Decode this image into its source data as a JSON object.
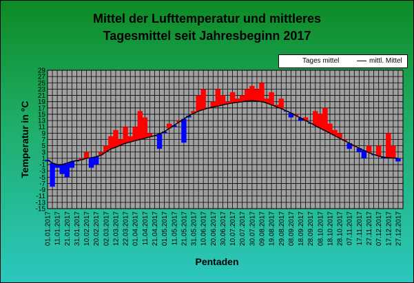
{
  "chart_data": {
    "type": "bar",
    "title_lines": [
      "Mittel der Lufttemperatur und mittleres",
      "Tagesmittel seit Jahresbeginn 2017"
    ],
    "xlabel": "Pentaden",
    "ylabel": "Temperatur in °C",
    "ylim": [
      -15,
      29
    ],
    "yticks": [
      29,
      27,
      25,
      23,
      21,
      19,
      17,
      15,
      13,
      11,
      9,
      7,
      5,
      3,
      1,
      -1,
      -3,
      -5,
      -7,
      -9,
      -11,
      -13,
      -15
    ],
    "xticks": [
      "01.01.2017",
      "11.01.2017",
      "21.01.2017",
      "31.01.2017",
      "10.02.2017",
      "20.02.2017",
      "02.03.2017",
      "12.03.2017",
      "22.03.2017",
      "01.04.2017",
      "11.04.2017",
      "21.04.2017",
      "01.05.2017",
      "11.05.2017",
      "21.05.2017",
      "31.05.2017",
      "10.06.2017",
      "20.06.2017",
      "30.06.2017",
      "10.07.2017",
      "20.07.2017",
      "30.07.2017",
      "09.08.2017",
      "19.08.2017",
      "29.08.2017",
      "08.09.2017",
      "18.09.2017",
      "28.09.2017",
      "08.10.2017",
      "18.10.2017",
      "28.10.2017",
      "07.11.2017",
      "17.11.2017",
      "27.11.2017",
      "07.12.2017",
      "17.12.2017",
      "27.12.2017"
    ],
    "grid": true,
    "legend_position": "top-right",
    "series": [
      {
        "name": "Tages mittel",
        "style": "bars above mean red, below mean blue"
      },
      {
        "name": "mittl. Mittel",
        "style": "line"
      }
    ],
    "x_days": [
      1,
      6,
      11,
      16,
      21,
      26,
      31,
      36,
      41,
      46,
      51,
      56,
      61,
      66,
      71,
      76,
      81,
      86,
      91,
      96,
      101,
      106,
      111,
      116,
      121,
      126,
      131,
      136,
      141,
      146,
      151,
      156,
      161,
      166,
      171,
      176,
      181,
      186,
      191,
      196,
      201,
      206,
      211,
      216,
      221,
      226,
      231,
      236,
      241,
      246,
      251,
      256,
      261,
      266,
      271,
      276,
      281,
      286,
      291,
      296,
      301,
      306,
      311,
      316,
      321,
      326,
      331,
      336,
      341,
      346,
      351,
      356,
      361
    ],
    "daily_mean": [
      0,
      -8,
      -2,
      -4,
      -5,
      -2,
      0,
      1,
      3,
      -2,
      -1,
      3,
      5,
      8,
      10,
      7,
      11,
      8,
      11,
      16,
      14,
      9,
      8,
      4,
      9,
      12,
      11,
      13,
      6,
      14,
      16,
      21,
      23,
      17,
      19,
      23,
      21,
      19,
      22,
      20,
      21,
      23,
      24,
      23,
      25,
      20,
      22,
      18,
      20,
      16,
      14,
      15,
      13,
      14,
      12,
      16,
      15,
      17,
      12,
      10,
      9,
      7,
      4,
      5,
      3,
      1,
      5,
      2,
      5,
      1,
      9,
      5,
      0
    ],
    "running_mean": [
      0.5,
      -0.5,
      -1,
      -1,
      -0.5,
      0,
      0.3,
      0.5,
      1,
      1.2,
      1.5,
      2,
      3,
      4,
      4.5,
      5.2,
      5.8,
      6.2,
      6.6,
      7,
      7.4,
      7.8,
      8.2,
      8.8,
      9.5,
      10.5,
      11.5,
      12.5,
      13.5,
      14.5,
      15.3,
      16,
      16.5,
      17,
      17.3,
      17.6,
      18,
      18.3,
      18.6,
      18.8,
      19,
      19.2,
      19.3,
      19.2,
      19,
      18.6,
      18,
      17.4,
      16.8,
      16.1,
      15.4,
      14.6,
      13.8,
      13,
      12.2,
      11.4,
      10.6,
      9.8,
      9,
      8.2,
      7.4,
      6.6,
      5.8,
      5,
      4.2,
      3.5,
      2.8,
      2.2,
      1.7,
      1.4,
      1.2,
      1.1,
      1
    ]
  },
  "legend": {
    "item1_label": "Tages mittel",
    "item2_label": "mittl. Mittel"
  },
  "colors": {
    "above_mean": "#ff0000",
    "below_mean": "#0000ff",
    "plot_background": "#a0a0a0",
    "grid": "#000000"
  }
}
